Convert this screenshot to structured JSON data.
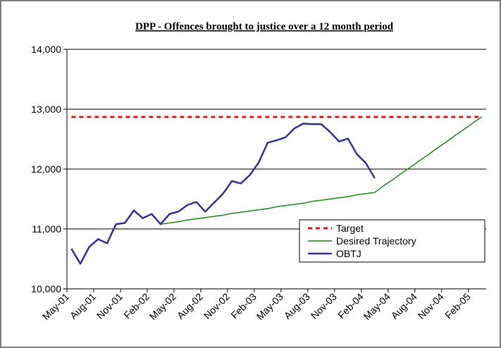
{
  "chart_data": {
    "type": "line",
    "title": "DPP - Offences brought to justice over a 12 month period",
    "categories": [
      "May-01",
      null,
      null,
      "Aug-01",
      null,
      null,
      "Nov-01",
      null,
      null,
      "Feb-02",
      null,
      null,
      "May-02",
      null,
      null,
      "Aug-02",
      null,
      null,
      "Nov-02",
      null,
      null,
      "Feb-03",
      null,
      null,
      "May-03",
      null,
      null,
      "Aug-03",
      null,
      null,
      "Nov-03",
      null,
      null,
      "Feb-04",
      null,
      null,
      "May-04",
      null,
      null,
      "Aug-04",
      null,
      null,
      "Nov-04",
      null,
      null,
      "Feb-05",
      null
    ],
    "series": [
      {
        "name": "Target",
        "color": "#e31a1c",
        "dash": true,
        "values": [
          12870,
          12870,
          12870,
          12870,
          12870,
          12870,
          12870,
          12870,
          12870,
          12870,
          12870,
          12870,
          12870,
          12870,
          12870,
          12870,
          12870,
          12870,
          12870,
          12870,
          12870,
          12870,
          12870,
          12870,
          12870,
          12870,
          12870,
          12870,
          12870,
          12870,
          12870,
          12870,
          12870,
          12870,
          12870,
          12870,
          12870,
          12870,
          12870,
          12870,
          12870,
          12870,
          12870,
          12870,
          12870,
          12870,
          12870
        ]
      },
      {
        "name": "Desired Trajectory",
        "color": "#1a8c1a",
        "values": [
          null,
          null,
          null,
          null,
          null,
          null,
          null,
          null,
          null,
          null,
          11080,
          11100,
          11120,
          11150,
          11170,
          11190,
          11210,
          11230,
          11260,
          11280,
          11300,
          11320,
          11340,
          11370,
          11390,
          11410,
          11430,
          11460,
          11480,
          11500,
          11520,
          11540,
          11570,
          11590,
          11610,
          11720,
          11820,
          11930,
          12030,
          12140,
          12240,
          12350,
          12450,
          12560,
          12660,
          12770,
          12870
        ]
      },
      {
        "name": "OBTJ",
        "color": "#333399",
        "values": [
          10670,
          10420,
          10700,
          10830,
          10760,
          11080,
          11100,
          11310,
          11180,
          11250,
          11080,
          11250,
          11290,
          11400,
          11450,
          11290,
          11440,
          11590,
          11800,
          11760,
          11900,
          12110,
          12440,
          12480,
          12530,
          12680,
          12760,
          12750,
          12750,
          12620,
          12460,
          12510,
          12250,
          12100,
          11850,
          null,
          null,
          null,
          null,
          null,
          null,
          null,
          null,
          null,
          null,
          null,
          null
        ]
      }
    ],
    "ylim": [
      10000,
      14000
    ],
    "yticks": [
      {
        "value": 10000,
        "label": "10,000"
      },
      {
        "value": 11000,
        "label": "11,000"
      },
      {
        "value": 12000,
        "label": "12,000"
      },
      {
        "value": 13000,
        "label": "13,000"
      },
      {
        "value": 14000,
        "label": "14,000"
      }
    ],
    "grid": true,
    "legend": "lower right"
  }
}
